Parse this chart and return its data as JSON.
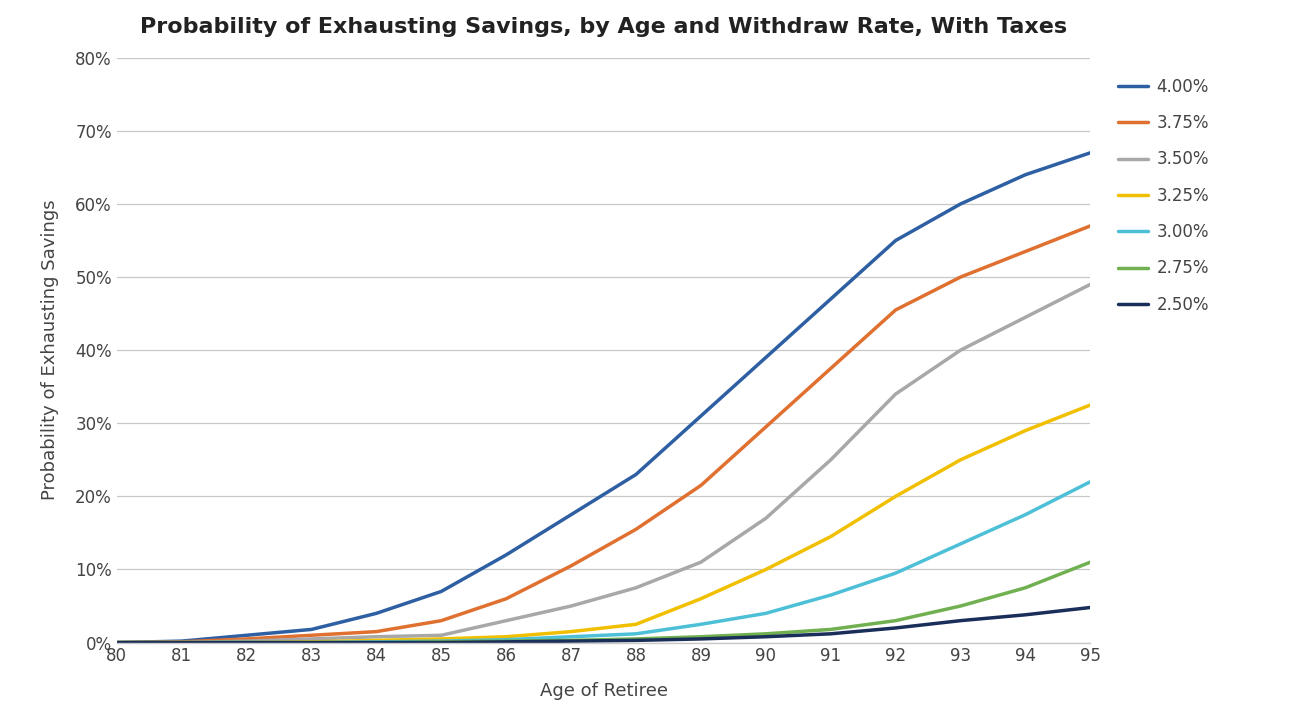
{
  "title": "Probability of Exhausting Savings, by Age and Withdraw Rate, With Taxes",
  "xlabel": "Age of Retiree",
  "ylabel": "Probability of Exhausting Savings",
  "ages": [
    80,
    81,
    82,
    83,
    84,
    85,
    86,
    87,
    88,
    89,
    90,
    91,
    92,
    93,
    94,
    95
  ],
  "series": [
    {
      "label": "4.00%",
      "color": "#2E5FA3",
      "values": [
        0.0,
        0.002,
        0.01,
        0.018,
        0.04,
        0.07,
        0.12,
        0.175,
        0.23,
        0.31,
        0.39,
        0.47,
        0.55,
        0.6,
        0.64,
        0.67
      ]
    },
    {
      "label": "3.75%",
      "color": "#E07030",
      "values": [
        0.0,
        0.001,
        0.005,
        0.01,
        0.015,
        0.03,
        0.06,
        0.105,
        0.155,
        0.215,
        0.295,
        0.375,
        0.455,
        0.5,
        0.535,
        0.57
      ]
    },
    {
      "label": "3.50%",
      "color": "#A8A8A8",
      "values": [
        0.0,
        0.0,
        0.002,
        0.005,
        0.008,
        0.01,
        0.03,
        0.05,
        0.075,
        0.11,
        0.17,
        0.25,
        0.34,
        0.4,
        0.445,
        0.49
      ]
    },
    {
      "label": "3.25%",
      "color": "#F0C000",
      "values": [
        0.0,
        0.0,
        0.0,
        0.001,
        0.003,
        0.005,
        0.008,
        0.015,
        0.025,
        0.06,
        0.1,
        0.145,
        0.2,
        0.25,
        0.29,
        0.325
      ]
    },
    {
      "label": "3.00%",
      "color": "#4DC0D8",
      "values": [
        0.0,
        0.0,
        0.0,
        0.0,
        0.001,
        0.002,
        0.004,
        0.008,
        0.012,
        0.025,
        0.04,
        0.065,
        0.095,
        0.135,
        0.175,
        0.22
      ]
    },
    {
      "label": "2.75%",
      "color": "#70B050",
      "values": [
        0.0,
        0.0,
        0.0,
        0.0,
        0.0,
        0.001,
        0.002,
        0.003,
        0.005,
        0.008,
        0.012,
        0.018,
        0.03,
        0.05,
        0.075,
        0.11
      ]
    },
    {
      "label": "2.50%",
      "color": "#1A2E5A",
      "values": [
        0.0,
        0.0,
        0.0,
        0.0,
        0.0,
        0.0,
        0.001,
        0.002,
        0.003,
        0.005,
        0.008,
        0.012,
        0.02,
        0.03,
        0.038,
        0.048
      ]
    }
  ],
  "ylim": [
    0.0,
    0.8
  ],
  "yticks": [
    0.0,
    0.1,
    0.2,
    0.3,
    0.4,
    0.5,
    0.6,
    0.7,
    0.8
  ],
  "background_color": "#FFFFFF",
  "grid_color": "#C8C8C8",
  "title_fontsize": 16,
  "axis_label_fontsize": 13,
  "tick_fontsize": 12,
  "legend_fontsize": 12,
  "line_width": 2.5
}
